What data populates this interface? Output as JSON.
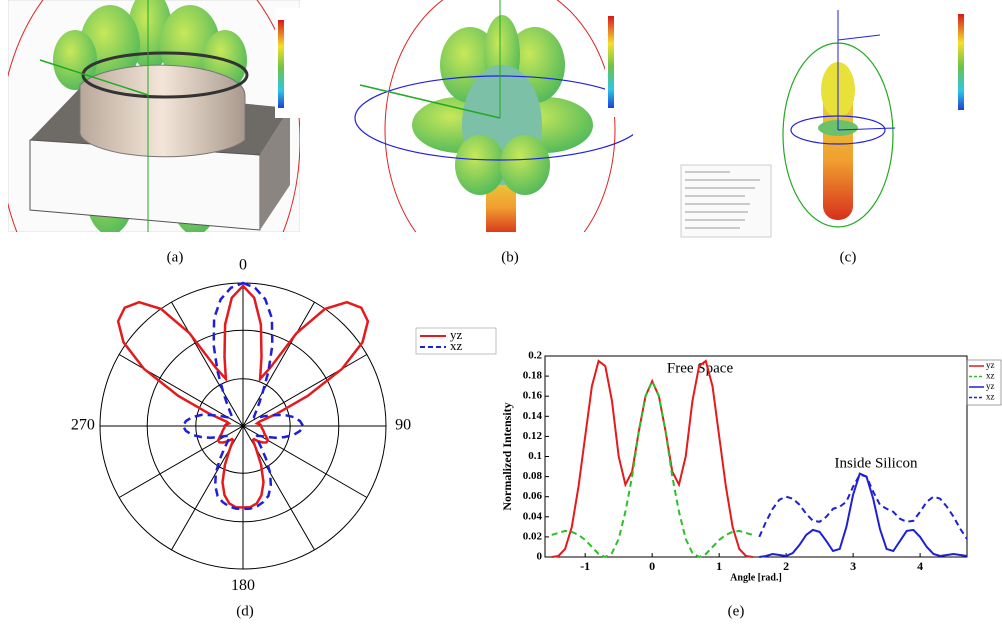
{
  "figure": {
    "panel_labels": [
      "(a)",
      "(b)",
      "(c)",
      "(d)",
      "(e)"
    ]
  },
  "chart_data": [
    {
      "type": "polar",
      "theta": [
        0,
        5,
        10,
        15,
        20,
        25,
        30,
        35,
        40,
        45,
        50,
        55,
        60,
        65,
        70,
        75,
        80,
        85,
        90,
        95,
        100,
        105,
        110,
        115,
        120,
        125,
        130,
        135,
        140,
        145,
        150,
        155,
        160,
        165,
        170,
        175,
        180,
        185,
        190,
        195,
        200,
        205,
        210,
        215,
        220,
        225,
        230,
        235,
        240,
        245,
        250,
        255,
        260,
        265,
        270,
        275,
        280,
        285,
        290,
        295,
        300,
        305,
        310,
        315,
        320,
        325,
        330,
        335,
        340,
        345,
        350,
        355
      ],
      "rlim": [
        0,
        1
      ],
      "rticks": [
        0.33,
        0.67,
        1
      ],
      "thetaticks": [
        0,
        90,
        180,
        270
      ],
      "legend": "upper right",
      "series": [
        {
          "name": "yz",
          "color": "#e41a1c",
          "dash": false,
          "values": [
            0.98,
            0.9,
            0.72,
            0.5,
            0.35,
            0.45,
            0.75,
            1.0,
            1.13,
            1.17,
            1.14,
            1.02,
            0.8,
            0.5,
            0.25,
            0.12,
            0.1,
            0.12,
            0.13,
            0.13,
            0.14,
            0.15,
            0.16,
            0.18,
            0.2,
            0.2,
            0.18,
            0.15,
            0.12,
            0.12,
            0.18,
            0.3,
            0.42,
            0.5,
            0.55,
            0.57,
            0.57,
            0.57,
            0.55,
            0.5,
            0.42,
            0.3,
            0.18,
            0.12,
            0.12,
            0.15,
            0.18,
            0.2,
            0.2,
            0.18,
            0.16,
            0.15,
            0.14,
            0.13,
            0.13,
            0.12,
            0.1,
            0.12,
            0.25,
            0.5,
            0.8,
            1.02,
            1.14,
            1.17,
            1.13,
            1.0,
            0.75,
            0.45,
            0.35,
            0.5,
            0.72,
            0.9
          ]
        },
        {
          "name": "xz",
          "color": "#1f1fd6",
          "dash": true,
          "values": [
            1.0,
            0.97,
            0.9,
            0.78,
            0.6,
            0.42,
            0.28,
            0.2,
            0.15,
            0.12,
            0.1,
            0.1,
            0.12,
            0.16,
            0.22,
            0.3,
            0.36,
            0.4,
            0.42,
            0.4,
            0.36,
            0.3,
            0.24,
            0.18,
            0.14,
            0.12,
            0.12,
            0.15,
            0.2,
            0.28,
            0.38,
            0.46,
            0.52,
            0.55,
            0.57,
            0.58,
            0.58,
            0.58,
            0.57,
            0.55,
            0.52,
            0.46,
            0.38,
            0.28,
            0.2,
            0.15,
            0.12,
            0.12,
            0.14,
            0.18,
            0.24,
            0.3,
            0.36,
            0.4,
            0.42,
            0.4,
            0.36,
            0.3,
            0.22,
            0.16,
            0.12,
            0.1,
            0.1,
            0.12,
            0.15,
            0.2,
            0.28,
            0.42,
            0.6,
            0.78,
            0.9,
            0.97
          ]
        }
      ]
    },
    {
      "type": "line",
      "xlabel": "Angle [rad.]",
      "ylabel": "Normalized Intensity",
      "annotations": [
        "Free Space",
        "Inside Silicon"
      ],
      "xlim": [
        -1.6,
        4.7
      ],
      "ylim": [
        0,
        0.2
      ],
      "xticks": [
        -1,
        0,
        1,
        2,
        3,
        4
      ],
      "yticks": [
        0,
        0.02,
        0.04,
        0.06,
        0.08,
        0.1,
        0.12,
        0.14,
        0.16,
        0.18,
        0.2
      ],
      "legend": "upper right",
      "series": [
        {
          "name": "yz",
          "color": "#e41a1c",
          "dash": false,
          "x": [
            -1.5,
            -1.4,
            -1.3,
            -1.2,
            -1.1,
            -1.0,
            -0.9,
            -0.8,
            -0.7,
            -0.6,
            -0.5,
            -0.4,
            -0.3,
            -0.2,
            -0.1,
            0,
            0.1,
            0.2,
            0.3,
            0.4,
            0.5,
            0.6,
            0.7,
            0.8,
            0.9,
            1.0,
            1.1,
            1.2,
            1.3,
            1.4,
            1.5
          ],
          "values": [
            0,
            0.001,
            0.008,
            0.03,
            0.07,
            0.12,
            0.17,
            0.195,
            0.19,
            0.155,
            0.1,
            0.072,
            0.085,
            0.125,
            0.16,
            0.175,
            0.16,
            0.125,
            0.085,
            0.072,
            0.1,
            0.155,
            0.19,
            0.195,
            0.17,
            0.12,
            0.07,
            0.03,
            0.008,
            0.001,
            0
          ]
        },
        {
          "name": "xz",
          "color": "#2bbf2b",
          "dash": true,
          "x": [
            -1.5,
            -1.4,
            -1.3,
            -1.2,
            -1.1,
            -1.0,
            -0.9,
            -0.8,
            -0.7,
            -0.6,
            -0.5,
            -0.4,
            -0.3,
            -0.2,
            -0.1,
            0,
            0.1,
            0.2,
            0.3,
            0.4,
            0.5,
            0.6,
            0.7,
            0.8,
            0.9,
            1.0,
            1.1,
            1.2,
            1.3,
            1.4,
            1.5
          ],
          "values": [
            0.022,
            0.024,
            0.026,
            0.025,
            0.022,
            0.017,
            0.01,
            0.003,
            0,
            0.004,
            0.018,
            0.045,
            0.08,
            0.125,
            0.16,
            0.175,
            0.16,
            0.125,
            0.08,
            0.045,
            0.018,
            0.004,
            0,
            0.003,
            0.01,
            0.017,
            0.022,
            0.025,
            0.026,
            0.024,
            0.022
          ]
        },
        {
          "name": "yz",
          "color": "#1f1fd6",
          "dash": false,
          "x": [
            1.6,
            1.7,
            1.8,
            1.9,
            2.0,
            2.1,
            2.2,
            2.3,
            2.4,
            2.5,
            2.6,
            2.7,
            2.8,
            2.9,
            3.0,
            3.1,
            3.2,
            3.3,
            3.4,
            3.5,
            3.6,
            3.7,
            3.8,
            3.9,
            4.0,
            4.1,
            4.2,
            4.3,
            4.4,
            4.5,
            4.6,
            4.7
          ],
          "values": [
            0,
            0.001,
            0.003,
            0.002,
            0.001,
            0.004,
            0.012,
            0.022,
            0.027,
            0.025,
            0.016,
            0.006,
            0.008,
            0.03,
            0.062,
            0.083,
            0.08,
            0.058,
            0.028,
            0.008,
            0.006,
            0.016,
            0.026,
            0.027,
            0.02,
            0.01,
            0.003,
            0.001,
            0.002,
            0.003,
            0.002,
            0.001
          ]
        },
        {
          "name": "xz",
          "color": "#1f1fd6",
          "dash": true,
          "x": [
            1.6,
            1.7,
            1.8,
            1.9,
            2.0,
            2.1,
            2.2,
            2.3,
            2.4,
            2.5,
            2.6,
            2.7,
            2.8,
            2.9,
            3.0,
            3.1,
            3.2,
            3.3,
            3.4,
            3.5,
            3.6,
            3.7,
            3.8,
            3.9,
            4.0,
            4.1,
            4.2,
            4.3,
            4.4,
            4.5,
            4.6,
            4.7
          ],
          "values": [
            0.02,
            0.035,
            0.048,
            0.057,
            0.06,
            0.058,
            0.052,
            0.043,
            0.036,
            0.035,
            0.04,
            0.048,
            0.05,
            0.055,
            0.07,
            0.082,
            0.08,
            0.065,
            0.052,
            0.048,
            0.045,
            0.038,
            0.035,
            0.036,
            0.045,
            0.055,
            0.06,
            0.058,
            0.05,
            0.04,
            0.028,
            0.018
          ]
        }
      ]
    }
  ]
}
